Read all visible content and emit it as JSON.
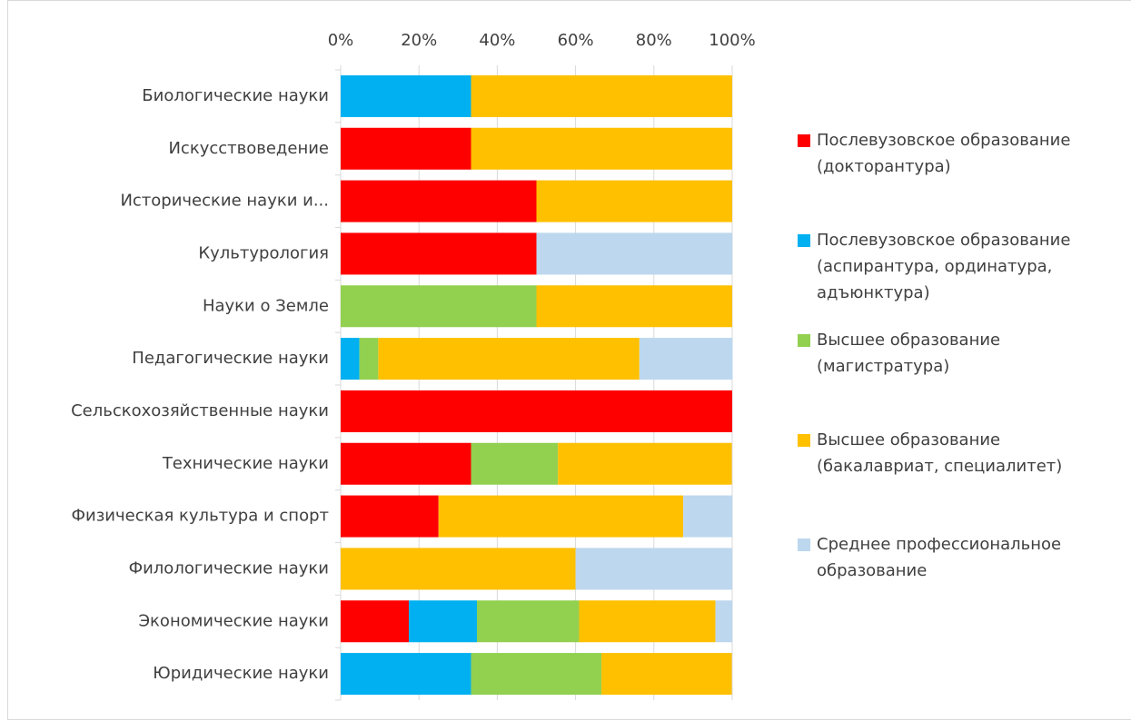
{
  "chart_data": {
    "type": "bar",
    "orientation": "horizontal",
    "stacked": true,
    "categories": [
      "Биологические науки",
      "Искусствоведение",
      "Исторические науки и...",
      "Культурология",
      "Науки о Земле",
      "Педагогические науки",
      "Сельскохозяйственные науки",
      "Технические науки",
      "Физическая культура и спорт",
      "Филологические науки",
      "Экономические науки",
      "Юридические науки"
    ],
    "series": [
      {
        "name": "Послевузовское образование (докторантура)",
        "color": "#ff0000",
        "values": [
          0,
          33.3,
          50,
          50,
          0,
          0,
          100,
          33.3,
          25,
          0,
          17.4,
          0
        ]
      },
      {
        "name": "Послевузовское образование (аспирантура, ординатура, адъюнктура)",
        "color": "#00b0f0",
        "values": [
          33.3,
          0,
          0,
          0,
          0,
          4.8,
          0,
          0,
          0,
          0,
          17.4,
          33.3
        ]
      },
      {
        "name": "Высшее образование (магистратура)",
        "color": "#92d050",
        "values": [
          0,
          0,
          0,
          0,
          50,
          4.8,
          0,
          22.2,
          0,
          0,
          26.1,
          33.3
        ]
      },
      {
        "name": "Высшее образование (бакалавриат, специалитет)",
        "color": "#ffc000",
        "values": [
          66.7,
          66.7,
          50,
          0,
          50,
          66.7,
          0,
          44.4,
          62.5,
          60,
          34.8,
          33.3
        ]
      },
      {
        "name": "Среднее профессиональное образование",
        "color": "#bdd7ee",
        "values": [
          0,
          0,
          0,
          50,
          0,
          23.8,
          0,
          0,
          12.5,
          40,
          4.3,
          0
        ]
      }
    ],
    "xlim": [
      0,
      100
    ],
    "xticks": [
      {
        "value": 0,
        "label": "0%"
      },
      {
        "value": 20,
        "label": "20%"
      },
      {
        "value": 40,
        "label": "40%"
      },
      {
        "value": 60,
        "label": "60%"
      },
      {
        "value": 80,
        "label": "80%"
      },
      {
        "value": 100,
        "label": "100%"
      }
    ],
    "grid": true,
    "legend": "right"
  }
}
